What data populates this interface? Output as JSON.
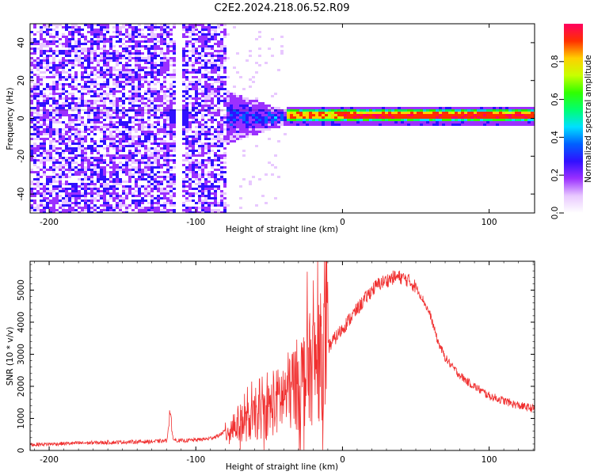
{
  "title": "C2E2.2024.218.06.52.R09",
  "colors": {
    "snr_line": "#f03030",
    "frame": "#000000"
  },
  "chart_data": [
    {
      "type": "heatmap",
      "name": "spectrogram",
      "xlabel": "Height of straight line (km)",
      "ylabel": "Frequency (Hz)",
      "xlim": [
        -213,
        131
      ],
      "ylim": [
        -50,
        50
      ],
      "x_ticks": [
        -200,
        -100,
        0,
        100
      ],
      "y_ticks": [
        -40,
        -20,
        0,
        20,
        40
      ],
      "colorbar": {
        "label": "Normalized spectral amplitude",
        "range": [
          0.0,
          1.0
        ],
        "ticks": [
          0.0,
          0.2,
          0.4,
          0.6,
          0.8
        ],
        "colormap": [
          "#ffffff",
          "#e8c8ff",
          "#9b30ff",
          "#3010ff",
          "#0060ff",
          "#00e0ff",
          "#00ff70",
          "#30ff00",
          "#c8ff00",
          "#ffd000",
          "#ff3000",
          "#ff0060"
        ]
      },
      "regions": [
        {
          "from": -213,
          "to": -80,
          "description": "broadband noise",
          "amplitude": 0.15
        },
        {
          "from": -80,
          "to": -40,
          "description": "transition",
          "amplitude": 0.3
        },
        {
          "from": -40,
          "to": 131,
          "description": "narrow line near 2 Hz",
          "center_hz": 2,
          "amplitude": 1.0
        }
      ],
      "axes": {
        "y_tick_labels": [
          "-40",
          "-20",
          "0",
          "20",
          "40"
        ],
        "x_tick_labels": [
          "-200",
          "-100",
          "0",
          "100"
        ],
        "cb_tick_labels": [
          "0.0",
          "0.2",
          "0.4",
          "0.6",
          "0.8"
        ]
      }
    },
    {
      "type": "line",
      "name": "snr",
      "xlabel": "Height of straight line (km)",
      "ylabel": "SNR (10 * v/v)",
      "xlim": [
        -213,
        131
      ],
      "ylim": [
        0,
        5900
      ],
      "x_ticks": [
        -200,
        -100,
        0,
        100
      ],
      "y_ticks": [
        0,
        1000,
        2000,
        3000,
        4000,
        5000
      ],
      "axes": {
        "y_tick_labels": [
          "0",
          "1000",
          "2000",
          "3000",
          "4000",
          "5000"
        ],
        "x_tick_labels": [
          "-200",
          "-100",
          "0",
          "100"
        ]
      },
      "series": [
        {
          "x": [
            -213,
            -200,
            -180,
            -160,
            -140,
            -130,
            -120,
            -118,
            -115,
            -110,
            -100,
            -92,
            -85,
            -80,
            -75,
            -70,
            -65,
            -60,
            -55,
            -50,
            -45,
            -40,
            -35,
            -30,
            -25,
            -20,
            -15,
            -10,
            -5,
            0,
            5,
            10,
            15,
            20,
            25,
            30,
            35,
            40,
            45,
            50,
            55,
            60,
            65,
            70,
            75,
            80,
            85,
            90,
            95,
            100,
            110,
            120,
            131
          ],
          "values": [
            180,
            200,
            230,
            250,
            270,
            280,
            300,
            850,
            330,
            300,
            330,
            360,
            450,
            600,
            750,
            850,
            900,
            1000,
            1100,
            1300,
            1500,
            1700,
            1900,
            2100,
            2400,
            2650,
            2900,
            3200,
            3500,
            3800,
            4100,
            4400,
            4700,
            5000,
            5200,
            5300,
            5400,
            5400,
            5300,
            5100,
            4700,
            4200,
            3400,
            2900,
            2600,
            2350,
            2150,
            2000,
            1850,
            1700,
            1550,
            1400,
            1300
          ]
        }
      ]
    }
  ]
}
